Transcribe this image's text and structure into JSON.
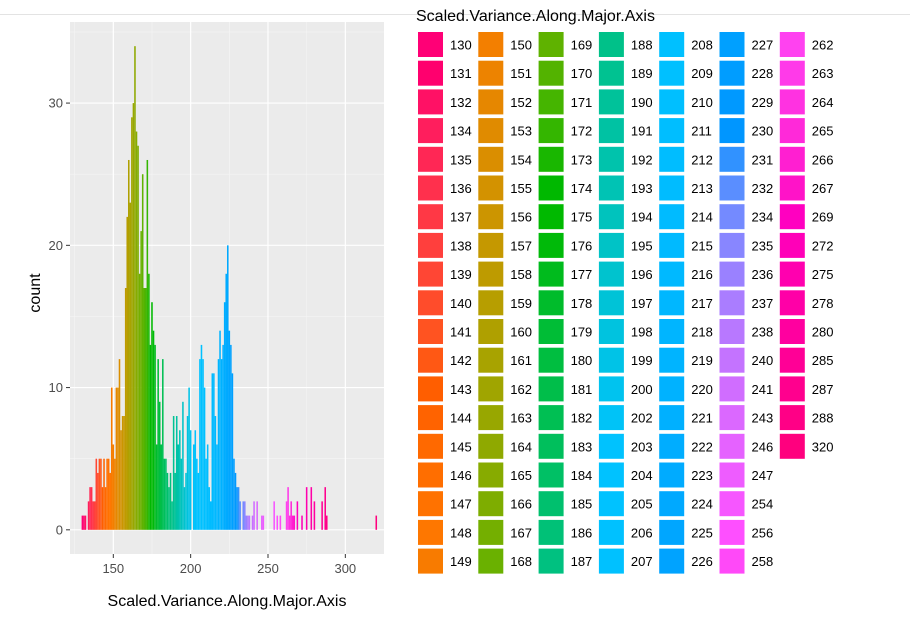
{
  "chart_data": {
    "type": "bar",
    "xlabel": "Scaled.Variance.Along.Major.Axis",
    "ylabel": "count",
    "xlim": [
      122,
      325
    ],
    "ylim": [
      -1.7,
      35.7
    ],
    "x_ticks": [
      150,
      200,
      250,
      300
    ],
    "y_ticks": [
      0,
      10,
      20,
      30
    ],
    "grid": true,
    "legend_title": "Scaled.Variance.Along.Major.Axis",
    "legend_placement": "right",
    "categories": [
      130,
      131,
      132,
      134,
      135,
      136,
      137,
      138,
      139,
      140,
      141,
      142,
      143,
      144,
      145,
      146,
      147,
      148,
      149,
      150,
      151,
      152,
      153,
      154,
      155,
      156,
      157,
      158,
      159,
      160,
      161,
      162,
      163,
      164,
      165,
      166,
      167,
      168,
      169,
      170,
      171,
      172,
      173,
      174,
      175,
      176,
      177,
      178,
      179,
      180,
      181,
      182,
      183,
      184,
      185,
      186,
      187,
      188,
      189,
      190,
      191,
      192,
      193,
      194,
      195,
      196,
      197,
      198,
      199,
      200,
      202,
      203,
      204,
      205,
      206,
      207,
      208,
      209,
      210,
      211,
      212,
      213,
      214,
      215,
      216,
      217,
      218,
      219,
      220,
      221,
      222,
      223,
      224,
      225,
      226,
      227,
      228,
      229,
      230,
      231,
      232,
      234,
      235,
      236,
      237,
      238,
      240,
      241,
      243,
      246,
      247,
      254,
      256,
      258,
      262,
      263,
      264,
      265,
      266,
      267,
      269,
      272,
      275,
      278,
      280,
      285,
      287,
      288,
      320
    ],
    "values": [
      1,
      1,
      1,
      2,
      3,
      3,
      2,
      2,
      5,
      4,
      5,
      5,
      3,
      5,
      3,
      5,
      5,
      4,
      10,
      6,
      5,
      10,
      10,
      12,
      7,
      8,
      8,
      17,
      22,
      26,
      23,
      29,
      30,
      34,
      28,
      27,
      18,
      21,
      25,
      17,
      17,
      26,
      18,
      13,
      16,
      14,
      13,
      6,
      12,
      9,
      6,
      12,
      5,
      5,
      4,
      3,
      4,
      2,
      8,
      4,
      8,
      6,
      7,
      5,
      9,
      3,
      4,
      8,
      10,
      7,
      6,
      7,
      5,
      4,
      12,
      13,
      12,
      10,
      5,
      6,
      3,
      2,
      11,
      11,
      8,
      6,
      12,
      14,
      12,
      13,
      16,
      18,
      20,
      14,
      13,
      11,
      5,
      4,
      3,
      3,
      2,
      2,
      2,
      1,
      1,
      1,
      1,
      2,
      2,
      1,
      1,
      2,
      1,
      1,
      2,
      3,
      1,
      2,
      1,
      1,
      2,
      1,
      3,
      3,
      2,
      2,
      3,
      1,
      1
    ]
  }
}
